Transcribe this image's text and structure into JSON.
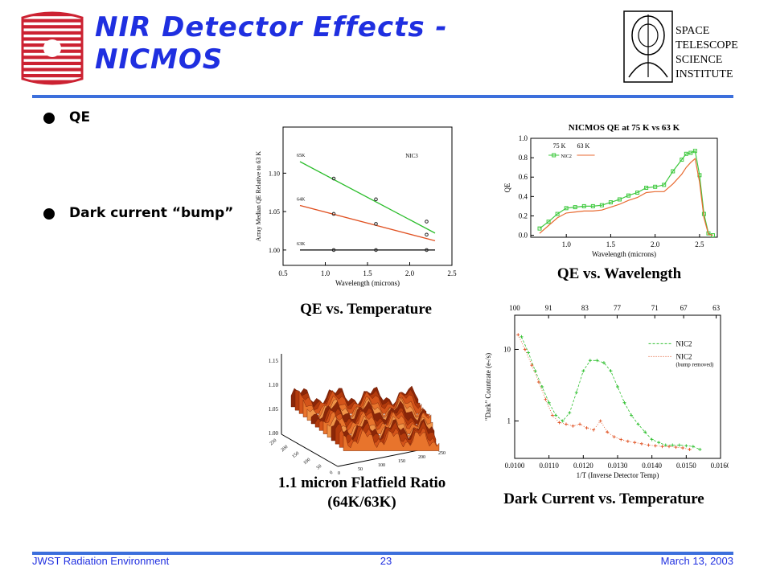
{
  "slide": {
    "title": "NIR Detector Effects - NICMOS",
    "bullets": [
      "QE",
      "Dark current “bump”"
    ],
    "footer": {
      "left": "JWST Radiation Environment",
      "center": "23",
      "right": "March 13, 2003"
    },
    "logo_text": [
      "SPACE",
      "TELESCOPE",
      "SCIENCE",
      "INSTITUTE"
    ],
    "colors": {
      "title": "#1f2fe0",
      "rule": "#3c6fdc",
      "logo_red": "#cc2232"
    }
  },
  "captions": {
    "qe_temp": "QE vs. Temperature",
    "qe_wave": "QE vs. Wavelength",
    "flatfield": [
      "1.1 micron Flatfield Ratio",
      "(64K/63K)"
    ],
    "dark": "Dark Current vs. Temperature"
  },
  "chart_data": [
    {
      "type": "line",
      "xlabel": "Wavelength (microns)",
      "ylabel": "Array Median QE Relative to 63 K",
      "xlim": [
        0.5,
        2.5
      ],
      "ylim": [
        0.98,
        1.16
      ],
      "xticks": [
        "0.5",
        "1.0",
        "1.5",
        "2.0",
        "2.5"
      ],
      "yticks": [
        "1.00",
        "1.05",
        "1.10"
      ],
      "annotation": "NIC3",
      "series": [
        {
          "name": "65K",
          "color": "#2bbd2b",
          "x": [
            0.7,
            2.3
          ],
          "y": [
            1.115,
            1.022
          ],
          "points_x": [
            1.1,
            1.6,
            2.2
          ],
          "points_y": [
            1.093,
            1.066,
            1.037
          ]
        },
        {
          "name": "64K",
          "color": "#e05020",
          "x": [
            0.7,
            2.3
          ],
          "y": [
            1.058,
            1.012
          ],
          "points_x": [
            1.1,
            1.6,
            2.2
          ],
          "points_y": [
            1.047,
            1.034,
            1.02
          ]
        },
        {
          "name": "63K",
          "color": "#000000",
          "x": [
            0.7,
            2.3
          ],
          "y": [
            1.0,
            1.0
          ],
          "points_x": [
            1.1,
            1.6,
            2.2
          ],
          "points_y": [
            1.0,
            1.0,
            1.0
          ]
        }
      ]
    },
    {
      "type": "line",
      "title": "NICMOS QE at 75 K vs 63 K",
      "xlabel": "Wavelength (microns)",
      "ylabel": "QE",
      "xlim": [
        0.6,
        2.7
      ],
      "ylim": [
        -0.02,
        1.0
      ],
      "xticks": [
        "1.0",
        "1.5",
        "2.0",
        "2.5"
      ],
      "yticks": [
        "0.0",
        "0.2",
        "0.4",
        "0.6",
        "0.8",
        "1.0"
      ],
      "legend_titles": [
        "75 K",
        "63 K"
      ],
      "series": [
        {
          "name": "NIC2",
          "color": "#3ec93e",
          "x": [
            0.7,
            0.8,
            0.9,
            1.0,
            1.1,
            1.2,
            1.3,
            1.4,
            1.5,
            1.6,
            1.7,
            1.8,
            1.9,
            2.0,
            2.1,
            2.2,
            2.3,
            2.35,
            2.4,
            2.45,
            2.5,
            2.55,
            2.6,
            2.65
          ],
          "y": [
            0.07,
            0.14,
            0.22,
            0.28,
            0.29,
            0.3,
            0.3,
            0.31,
            0.34,
            0.37,
            0.41,
            0.44,
            0.49,
            0.5,
            0.52,
            0.66,
            0.78,
            0.84,
            0.85,
            0.87,
            0.62,
            0.22,
            0.02,
            0.0
          ]
        },
        {
          "name": "",
          "color": "#e86a30",
          "x": [
            0.7,
            0.8,
            0.9,
            1.0,
            1.1,
            1.2,
            1.3,
            1.4,
            1.5,
            1.6,
            1.7,
            1.8,
            1.9,
            2.0,
            2.1,
            2.2,
            2.3,
            2.35,
            2.4,
            2.45,
            2.5,
            2.55,
            2.6,
            2.65
          ],
          "y": [
            0.02,
            0.1,
            0.18,
            0.23,
            0.24,
            0.25,
            0.25,
            0.26,
            0.29,
            0.32,
            0.36,
            0.39,
            0.44,
            0.45,
            0.45,
            0.53,
            0.63,
            0.7,
            0.75,
            0.79,
            0.55,
            0.18,
            0.01,
            0.0
          ]
        }
      ]
    },
    {
      "type": "surface",
      "zticks": [
        "1.00",
        "1.05",
        "1.10",
        "1.15"
      ],
      "xticks": [
        "0",
        "50",
        "100",
        "150",
        "200",
        "250"
      ],
      "yticks": [
        "0",
        "50",
        "100",
        "150",
        "200",
        "250"
      ]
    },
    {
      "type": "scatter",
      "xlabel": "1/T (Inverse Detector Temp)",
      "ylabel": "\"Dark\" Countrate (e-/s)",
      "xlim": [
        0.01,
        0.016
      ],
      "xticks": [
        "0.0100",
        "0.0110",
        "0.0120",
        "0.0130",
        "0.0140",
        "0.0150",
        "0.0160"
      ],
      "top_ticks": [
        "100",
        "91",
        "83",
        "77",
        "71",
        "67",
        "63"
      ],
      "yticks": [
        "1",
        "10"
      ],
      "log_y": true,
      "series": [
        {
          "name": "NIC2",
          "color": "#30c030",
          "x": [
            0.0102,
            0.0104,
            0.0106,
            0.0108,
            0.011,
            0.0112,
            0.0114,
            0.0116,
            0.0118,
            0.012,
            0.0122,
            0.0124,
            0.0126,
            0.0128,
            0.013,
            0.0132,
            0.0134,
            0.0136,
            0.0138,
            0.014,
            0.0142,
            0.0144,
            0.0146,
            0.0148,
            0.015,
            0.0152,
            0.0154
          ],
          "y": [
            15,
            9,
            5,
            3,
            1.8,
            1.2,
            1.0,
            1.3,
            2.5,
            5,
            7,
            7,
            6.5,
            5,
            3,
            1.8,
            1.2,
            0.9,
            0.7,
            0.55,
            0.5,
            0.46,
            0.46,
            0.46,
            0.45,
            0.44,
            0.4
          ]
        },
        {
          "name": "NIC2",
          "annotation": "(bump removed)",
          "color": "#e05020",
          "x": [
            0.0101,
            0.0103,
            0.0105,
            0.0107,
            0.0109,
            0.0111,
            0.0113,
            0.0115,
            0.0117,
            0.0119,
            0.0121,
            0.0123,
            0.0125,
            0.0127,
            0.0129,
            0.0131,
            0.0133,
            0.0135,
            0.0137,
            0.0139,
            0.0141,
            0.0143,
            0.0145,
            0.0147,
            0.0149,
            0.0151
          ],
          "y": [
            16,
            10,
            6,
            3.5,
            2,
            1.2,
            0.95,
            0.9,
            0.85,
            0.9,
            0.8,
            0.75,
            1.0,
            0.7,
            0.6,
            0.55,
            0.52,
            0.5,
            0.48,
            0.46,
            0.45,
            0.44,
            0.44,
            0.43,
            0.42,
            0.4
          ]
        }
      ]
    }
  ]
}
